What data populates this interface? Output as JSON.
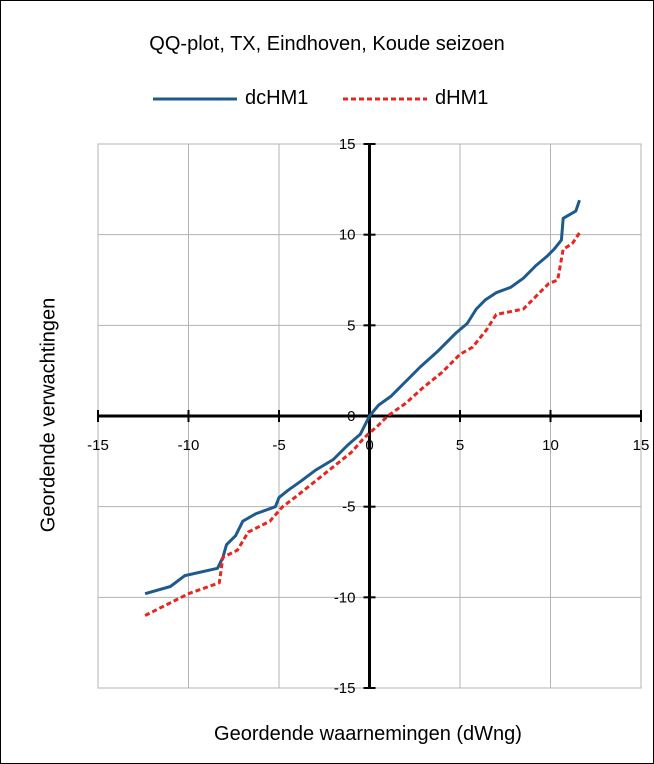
{
  "chart_data": {
    "type": "line",
    "title": "QQ-plot, TX, Eindhoven, Koude seizoen",
    "xlabel": "Geordende waarnemingen (dWng)",
    "ylabel": "Geordende verwachtingen",
    "xlim": [
      -15,
      15
    ],
    "ylim": [
      -15,
      15
    ],
    "xticks": [
      -15,
      -10,
      -5,
      0,
      5,
      10,
      15
    ],
    "yticks": [
      -15,
      -10,
      -5,
      0,
      5,
      10,
      15
    ],
    "grid": true,
    "legend": "top",
    "series": [
      {
        "name": "dcHM1",
        "color": "#1f5a8c",
        "style": "solid",
        "points": [
          [
            -12.4,
            -9.8
          ],
          [
            -11.0,
            -9.4
          ],
          [
            -10.2,
            -8.8
          ],
          [
            -8.4,
            -8.4
          ],
          [
            -8.1,
            -7.8
          ],
          [
            -7.9,
            -7.1
          ],
          [
            -7.4,
            -6.6
          ],
          [
            -7.0,
            -5.8
          ],
          [
            -6.3,
            -5.4
          ],
          [
            -5.2,
            -5.0
          ],
          [
            -5.0,
            -4.5
          ],
          [
            -4.5,
            -4.1
          ],
          [
            -3.8,
            -3.6
          ],
          [
            -3.0,
            -3.0
          ],
          [
            -2.0,
            -2.4
          ],
          [
            -1.2,
            -1.6
          ],
          [
            -0.5,
            -1.0
          ],
          [
            0.0,
            0.0
          ],
          [
            0.5,
            0.6
          ],
          [
            1.2,
            1.1
          ],
          [
            2.0,
            1.9
          ],
          [
            2.8,
            2.7
          ],
          [
            3.8,
            3.6
          ],
          [
            4.8,
            4.6
          ],
          [
            5.4,
            5.1
          ],
          [
            5.9,
            5.9
          ],
          [
            6.4,
            6.4
          ],
          [
            7.0,
            6.8
          ],
          [
            7.8,
            7.1
          ],
          [
            8.5,
            7.6
          ],
          [
            9.2,
            8.3
          ],
          [
            9.8,
            8.8
          ],
          [
            10.2,
            9.2
          ],
          [
            10.6,
            9.7
          ],
          [
            10.7,
            10.9
          ],
          [
            11.4,
            11.3
          ],
          [
            11.6,
            11.9
          ]
        ]
      },
      {
        "name": "dHM1",
        "color": "#e8261f",
        "style": "dashed",
        "points": [
          [
            -12.4,
            -11.0
          ],
          [
            -11.0,
            -10.3
          ],
          [
            -10.0,
            -9.8
          ],
          [
            -8.3,
            -9.2
          ],
          [
            -8.1,
            -7.8
          ],
          [
            -7.3,
            -7.4
          ],
          [
            -6.7,
            -6.4
          ],
          [
            -5.5,
            -5.8
          ],
          [
            -4.8,
            -5.0
          ],
          [
            -4.0,
            -4.4
          ],
          [
            -3.0,
            -3.6
          ],
          [
            -2.0,
            -2.8
          ],
          [
            -1.0,
            -2.0
          ],
          [
            -0.3,
            -1.2
          ],
          [
            0.5,
            -0.5
          ],
          [
            1.0,
            0.0
          ],
          [
            2.0,
            0.7
          ],
          [
            3.0,
            1.6
          ],
          [
            4.0,
            2.4
          ],
          [
            5.0,
            3.4
          ],
          [
            5.7,
            3.8
          ],
          [
            6.5,
            4.8
          ],
          [
            7.0,
            5.6
          ],
          [
            8.5,
            5.9
          ],
          [
            8.9,
            6.3
          ],
          [
            9.4,
            6.8
          ],
          [
            9.9,
            7.3
          ],
          [
            10.4,
            7.5
          ],
          [
            10.7,
            9.2
          ],
          [
            11.2,
            9.5
          ],
          [
            11.6,
            10.1
          ]
        ]
      }
    ]
  }
}
